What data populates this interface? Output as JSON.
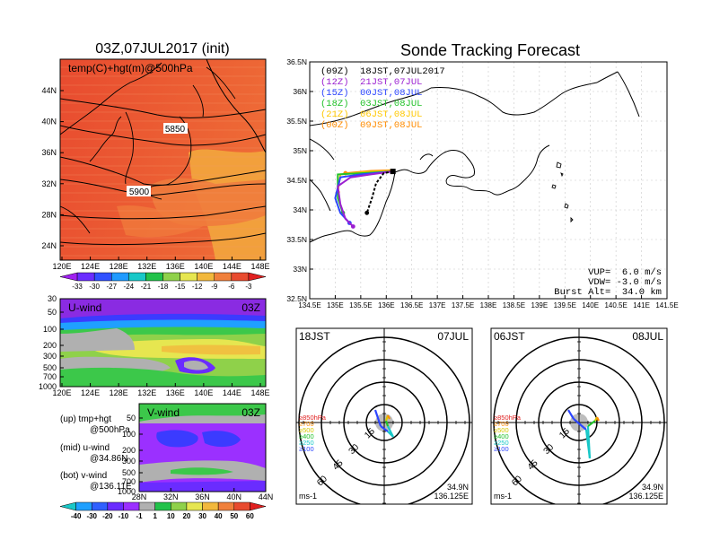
{
  "colors": {
    "frame": "#000000",
    "warm_field": "#e84b2f",
    "warm_field_light": "#f07b3c",
    "warm_field_orange": "#f29b3c",
    "uwind_purple": "#8a2be2",
    "uwind_blue": "#3b3bff",
    "uwind_green": "#3cc84a",
    "uwind_yellow": "#e6e650",
    "vwind_purple": "#9b30ff",
    "vwind_gray": "#b0b0b0",
    "path_09z": "#000000",
    "path_12z": "#9b1fd1",
    "path_15z": "#2d46ff",
    "path_18z": "#22c22a",
    "path_21z": "#ffc800",
    "path_00z": "#ff8c00"
  },
  "left": {
    "title": "03Z,07JUL2017 (init)",
    "map_label": "temp(C)+hgt(m)@500hPa",
    "contour_labels": [
      "5850",
      "5900"
    ],
    "lat_ticks": [
      "44N",
      "40N",
      "36N",
      "32N",
      "28N",
      "24N"
    ],
    "lon_ticks": [
      "120E",
      "124E",
      "128E",
      "132E",
      "136E",
      "140E",
      "144E",
      "148E"
    ],
    "temp_colorbar": [
      "-33",
      "-30",
      "-27",
      "-24",
      "-21",
      "-18",
      "-15",
      "-12",
      "-9",
      "-6",
      "-3"
    ],
    "temp_colorbar_colors": [
      "#a020f0",
      "#6a2cff",
      "#3050ff",
      "#1f9aff",
      "#18c8c8",
      "#22c24a",
      "#8fd14a",
      "#e6e650",
      "#f2b83c",
      "#f0803c",
      "#e84b2f",
      "#e02020"
    ],
    "uwind_label": "U-wind",
    "uwind_time": "03Z",
    "uwind_p_ticks": [
      "30",
      "50",
      "100",
      "200",
      "300",
      "500",
      "700",
      "1000"
    ],
    "vwind_label": "V-wind",
    "vwind_time": "03Z",
    "vwind_p_ticks": [
      "50",
      "100",
      "200",
      "300",
      "500",
      "700",
      "1000"
    ],
    "vwind_lat_ticks": [
      "28N",
      "32N",
      "36N",
      "40N",
      "44N"
    ],
    "notes": [
      {
        "line1": "(up) tmp+hgt",
        "line2": "@500hPa"
      },
      {
        "line1": "(mid) u-wind",
        "line2": "@34.86N"
      },
      {
        "line1": "(bot) v-wind",
        "line2": "@136.11E"
      }
    ],
    "wind_colorbar": [
      "-40",
      "-30",
      "-20",
      "-10",
      "-1",
      "1",
      "10",
      "20",
      "30",
      "40",
      "50",
      "60"
    ],
    "wind_colorbar_colors": [
      "#18c8c8",
      "#1fa0ff",
      "#3060ff",
      "#6a2cff",
      "#9b30ff",
      "#b0b0b0",
      "#22c24a",
      "#8fd14a",
      "#e6e650",
      "#f2b83c",
      "#f0803c",
      "#e84b2f",
      "#e02020"
    ]
  },
  "right": {
    "title": "Sonde Tracking Forecast",
    "legend": [
      {
        "text": "(09Z)  18JST,07JUL2017",
        "color": "#000000"
      },
      {
        "text": "(12Z)  21JST,07JUL",
        "color": "#9b1fd1"
      },
      {
        "text": "(15Z)  00JST,08JUL",
        "color": "#2d46ff"
      },
      {
        "text": "(18Z)  03JST,08JUL",
        "color": "#22c22a"
      },
      {
        "text": "(21Z)  06JST,08JUL",
        "color": "#ffc800"
      },
      {
        "text": "(00Z)  09JST,08JUL",
        "color": "#ff8c00"
      }
    ],
    "params": [
      "VUP=  6.0 m/s",
      "VDW= -3.0 m/s",
      "Burst Alt=  34.0 km"
    ],
    "lat_ticks": [
      "36.5N",
      "36N",
      "35.5N",
      "35N",
      "34.5N",
      "34N",
      "33.5N",
      "33N",
      "32.5N"
    ],
    "lon_ticks": [
      "134.5E",
      "135E",
      "135.5E",
      "136E",
      "136.5E",
      "137E",
      "137.5E",
      "138E",
      "138.5E",
      "139E",
      "139.5E",
      "140E",
      "140.5E",
      "141E",
      "141.5E"
    ]
  },
  "hodographs": [
    {
      "left_label": "18JST",
      "right_label": "07JUL",
      "rings": [
        "15",
        "30",
        "45",
        "60"
      ],
      "levels": [
        {
          "text": "≥850hPa",
          "color": "#e02020"
        },
        {
          "text": "≥700",
          "color": "#ff8c00"
        },
        {
          "text": "≥500",
          "color": "#d8c800"
        },
        {
          "text": "≥400",
          "color": "#22c22a"
        },
        {
          "text": "≥250",
          "color": "#18c8c8"
        },
        {
          "text": "≥100",
          "color": "#2d46ff"
        }
      ],
      "unit": "ms-1",
      "lat": "34.9N",
      "lon": "136.125E"
    },
    {
      "left_label": "06JST",
      "right_label": "08JUL",
      "rings": [
        "15",
        "30",
        "45",
        "60"
      ],
      "levels": [
        {
          "text": "≥850hPa",
          "color": "#e02020"
        },
        {
          "text": "≥700",
          "color": "#ff8c00"
        },
        {
          "text": "≥500",
          "color": "#d8c800"
        },
        {
          "text": "≥400",
          "color": "#22c22a"
        },
        {
          "text": "≥250",
          "color": "#18c8c8"
        },
        {
          "text": "≥100",
          "color": "#2d46ff"
        }
      ],
      "unit": "ms-1",
      "lat": "34.9N",
      "lon": "136.125E"
    }
  ],
  "chart_data": [
    {
      "type": "heatmap",
      "title": "03Z,07JUL2017 (init)",
      "subtitle": "temp(C)+hgt(m)@500hPa",
      "xlim": [
        "120E",
        "150E"
      ],
      "ylim": [
        "22N",
        "47N"
      ],
      "contour_values": [
        5850,
        5900
      ]
    },
    {
      "type": "heatmap",
      "title": "U-wind",
      "ylabel_ticks": [
        30,
        50,
        100,
        200,
        300,
        500,
        700,
        1000
      ]
    },
    {
      "type": "heatmap",
      "title": "V-wind",
      "xlim": [
        "28N",
        "44N"
      ]
    },
    {
      "type": "line",
      "title": "Sonde Tracking Forecast",
      "xlim": [
        134.5,
        141.5
      ],
      "ylim": [
        32.5,
        36.5
      ],
      "grid": true,
      "series": [
        {
          "name": "(09Z)  18JST,07JUL2017",
          "x": [
            136.13,
            135.95,
            135.8,
            135.72,
            135.62
          ],
          "y": [
            34.65,
            34.62,
            34.45,
            34.2,
            33.95
          ]
        },
        {
          "name": "(12Z)  21JST,07JUL",
          "x": [
            136.13,
            135.7,
            135.3,
            135.05,
            135.1,
            135.2,
            135.35
          ],
          "y": [
            34.65,
            34.6,
            34.55,
            34.4,
            34.1,
            33.85,
            33.72
          ]
        },
        {
          "name": "(15Z)  00JST,08JUL",
          "x": [
            136.13,
            135.5,
            135.1,
            135.0,
            135.1,
            135.28
          ],
          "y": [
            34.65,
            34.6,
            34.55,
            34.2,
            33.95,
            33.78
          ]
        },
        {
          "name": "(18Z)  03JST,08JUL",
          "x": [
            136.13,
            135.5,
            135.05,
            135.05,
            135.15
          ],
          "y": [
            34.65,
            34.62,
            34.6,
            34.2,
            33.95
          ]
        },
        {
          "name": "(21Z)  06JST,08JUL",
          "x": [
            136.13,
            135.6,
            135.1,
            135.05
          ],
          "y": [
            34.66,
            34.64,
            34.6,
            34.3
          ]
        },
        {
          "name": "(00Z)  09JST,08JUL",
          "x": [
            136.13,
            135.7,
            135.2
          ],
          "y": [
            34.67,
            34.66,
            34.62
          ]
        }
      ]
    }
  ]
}
